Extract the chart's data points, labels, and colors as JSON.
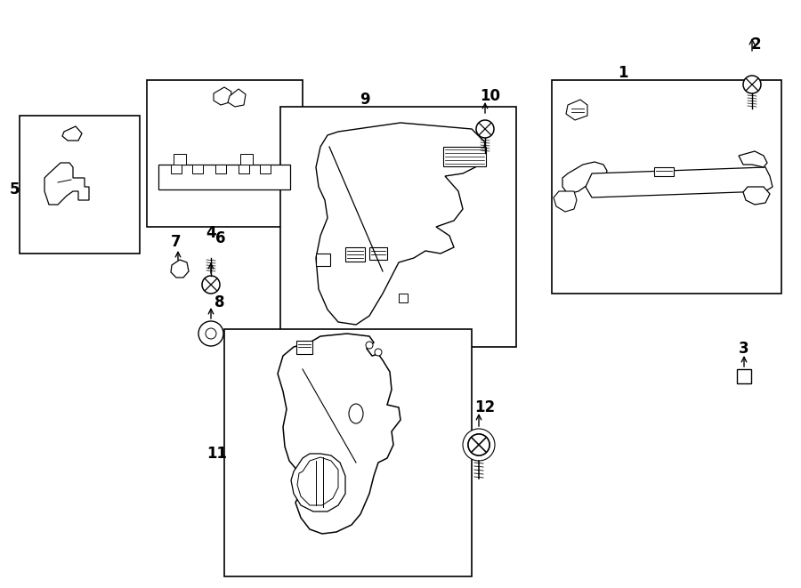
{
  "background_color": "#ffffff",
  "text_color": "#000000",
  "fig_width": 9.0,
  "fig_height": 6.61,
  "dpi": 100
}
